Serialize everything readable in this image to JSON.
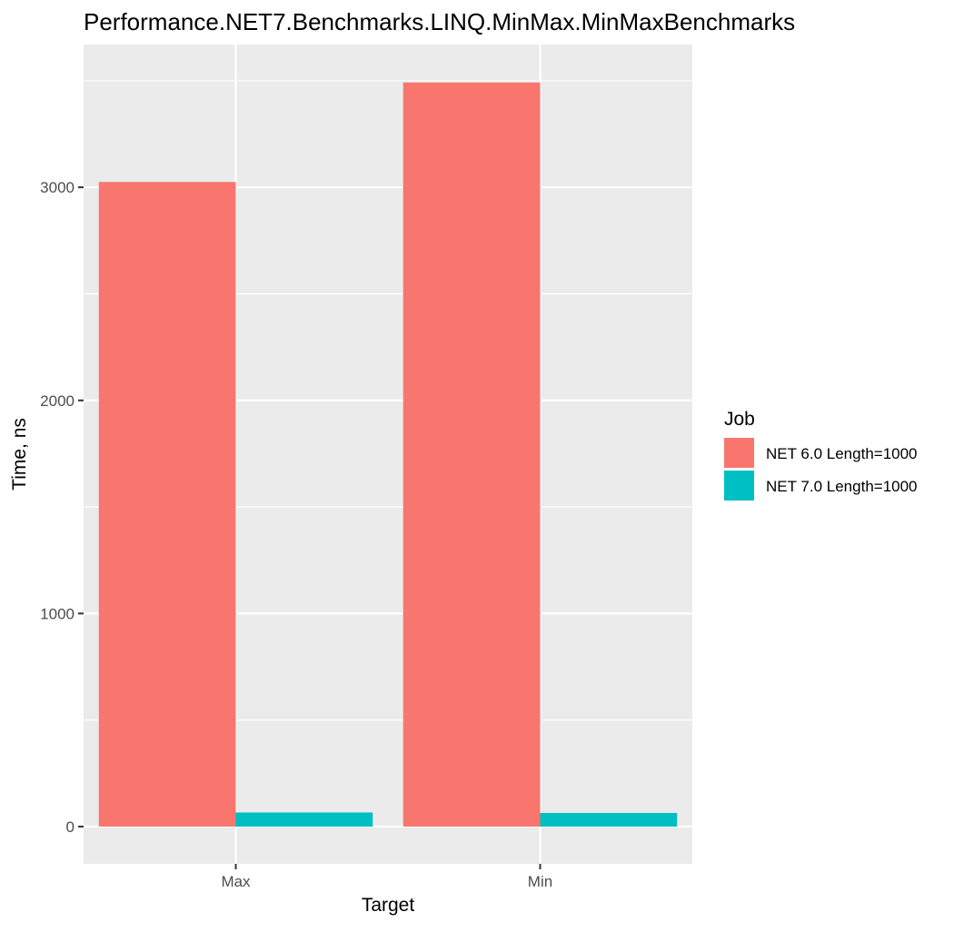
{
  "chart_data": {
    "type": "bar",
    "title": "Performance.NET7.Benchmarks.LINQ.MinMax.MinMaxBenchmarks",
    "xlabel": "Target",
    "ylabel": "Time, ns",
    "categories": [
      "Max",
      "Min"
    ],
    "series": [
      {
        "name": "NET 6.0 Length=1000",
        "values": [
          3025,
          3492
        ],
        "color": "#F8766D"
      },
      {
        "name": "NET 7.0 Length=1000",
        "values": [
          66,
          64
        ],
        "color": "#00BFC4"
      }
    ],
    "ylim": [
      -175,
      3670
    ],
    "yticks": [
      0,
      1000,
      2000,
      3000
    ],
    "ytick_labels": [
      "0",
      "1000",
      "2000",
      "3000"
    ],
    "grid": true,
    "legend": {
      "title": "Job",
      "position": "right"
    },
    "colors": {
      "panel": "#EBEBEB",
      "gridMajor": "#FFFFFF"
    }
  }
}
